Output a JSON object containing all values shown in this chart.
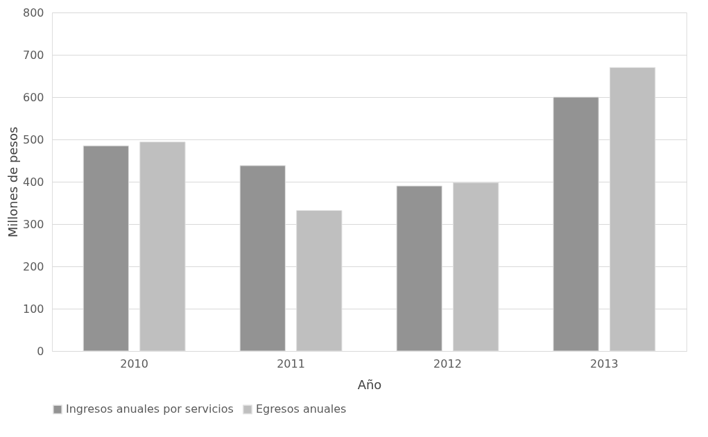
{
  "chart_data": {
    "type": "bar",
    "xlabel": "Año",
    "ylabel": "Millones de pesos",
    "categories": [
      "2010",
      "2011",
      "2012",
      "2013"
    ],
    "series": [
      {
        "name": "Ingresos anuales por servicios",
        "color": "#939393",
        "values": [
          485,
          438,
          390,
          600
        ]
      },
      {
        "name": "Egresos anuales",
        "color": "#bfbfbf",
        "values": [
          494,
          332,
          398,
          670
        ]
      }
    ],
    "ylim": [
      0,
      800
    ],
    "yticks": [
      0,
      100,
      200,
      300,
      400,
      500,
      600,
      700,
      800
    ],
    "grid": "y",
    "legend": "bottom"
  }
}
